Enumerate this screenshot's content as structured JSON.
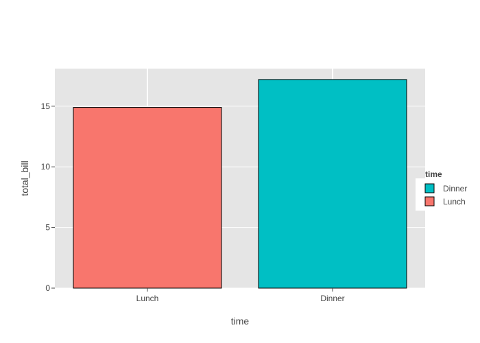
{
  "chart_data": {
    "type": "bar",
    "categories": [
      "Lunch",
      "Dinner"
    ],
    "values": [
      14.9,
      17.2
    ],
    "colors": {
      "Lunch": "#F8766D",
      "Dinner": "#00BFC4"
    },
    "xlabel": "time",
    "ylabel": "total_bill",
    "ylim": [
      0,
      18.1
    ],
    "yticks": [
      0,
      5,
      10,
      15
    ],
    "ytick_labels": [
      "0",
      "5",
      "10",
      "15"
    ],
    "grid": true,
    "legend": {
      "title": "time",
      "position": "right",
      "items": [
        {
          "label": "Dinner",
          "color": "#00BFC4"
        },
        {
          "label": "Lunch",
          "color": "#F8766D"
        }
      ]
    },
    "plot_background": "#E5E5E5",
    "gridline_color": "#FFFFFF",
    "bar_outline_color": "#000000"
  }
}
